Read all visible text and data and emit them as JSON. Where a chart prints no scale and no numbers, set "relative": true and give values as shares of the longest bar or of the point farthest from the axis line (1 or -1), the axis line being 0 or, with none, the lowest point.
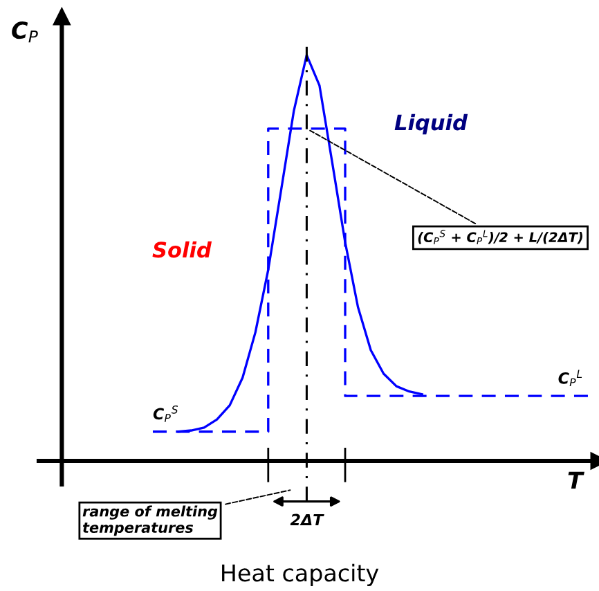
{
  "chart_data": {
    "type": "line",
    "relative": true,
    "title": "Heat capacity",
    "xlabel": "T",
    "ylabel": "C$_{P}$",
    "categories": [
      null,
      null,
      null,
      null,
      null,
      null,
      null,
      null,
      null,
      null,
      null,
      null,
      null,
      null,
      null,
      null,
      null,
      null,
      null,
      null,
      null,
      null,
      null,
      null,
      null,
      null,
      null,
      null,
      null,
      null,
      null,
      null,
      null,
      null,
      null
    ],
    "series": [
      {
        "line_style": "solid",
        "color": "#0000ff",
        "values": [
          null,
          null,
          0.072,
          0.075,
          0.082,
          0.102,
          0.137,
          0.205,
          0.317,
          0.471,
          0.666,
          0.863,
          1,
          0.925,
          0.734,
          0.539,
          0.379,
          0.273,
          0.215,
          0.184,
          0.171,
          0.164,
          null,
          null,
          null,
          null,
          null,
          null,
          null,
          null,
          null,
          null,
          null,
          null,
          null
        ]
      },
      {
        "type": "step",
        "line_style": "dashed",
        "color": "#0000ff",
        "values": [
          0.072,
          0.072,
          0.072,
          0.072,
          0.072,
          0.072,
          0.072,
          0.072,
          0.072,
          0.819,
          0.819,
          0.819,
          0.819,
          0.819,
          0.819,
          0.16,
          0.16,
          0.16,
          0.16,
          0.16,
          0.16,
          0.16,
          0.16,
          0.16,
          0.16,
          0.16,
          0.16,
          0.16,
          0.16,
          0.16,
          0.16,
          0.16,
          0.16,
          0.16,
          0.16
        ]
      }
    ],
    "annotations": [
      "Solid",
      "Liquid",
      "C$_{P}$$^{S}$",
      "C$_{P}$$^{L}$",
      "(C$_{P}$$^{S}$ + C$_{P}$$^{L}$)/2 + L/(2ΔT)",
      "range of melting\ntemperatures",
      "2ΔT"
    ]
  }
}
